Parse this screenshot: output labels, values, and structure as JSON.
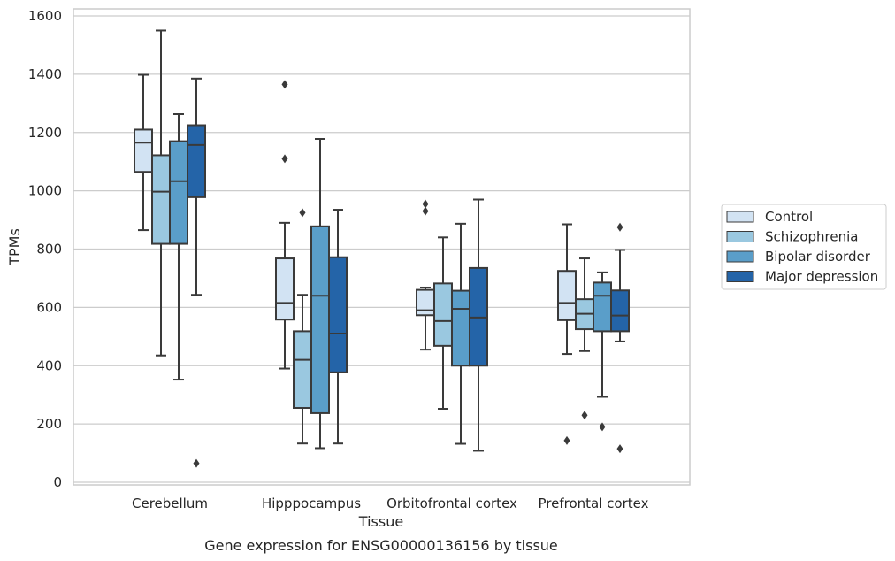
{
  "chart_data": {
    "type": "box",
    "xlabel": "Tissue",
    "ylabel": "TPMs",
    "caption": "Gene expression for ENSG00000136156 by tissue",
    "ylim": [
      0,
      1600
    ],
    "yticks": [
      0,
      200,
      400,
      600,
      800,
      1000,
      1200,
      1400,
      1600
    ],
    "grid": "horizontal",
    "legend_position": "right",
    "categories": [
      "Cerebellum",
      "Hipppocampus",
      "Orbitofrontal cortex",
      "Prefrontal cortex"
    ],
    "series": [
      {
        "name": "Control",
        "color": "#d2e3f3",
        "boxes": [
          {
            "whislo": 865,
            "q1": 1065,
            "med": 1165,
            "q3": 1210,
            "whishi": 1398,
            "fliers": []
          },
          {
            "whislo": 390,
            "q1": 558,
            "med": 615,
            "q3": 768,
            "whishi": 890,
            "fliers": [
              1365,
              1110
            ]
          },
          {
            "whislo": 455,
            "q1": 573,
            "med": 590,
            "q3": 660,
            "whishi": 668,
            "fliers": [
              955,
              930
            ]
          },
          {
            "whislo": 440,
            "q1": 556,
            "med": 615,
            "q3": 725,
            "whishi": 885,
            "fliers": [
              143
            ]
          }
        ]
      },
      {
        "name": "Schizophrenia",
        "color": "#9ac8e0",
        "boxes": [
          {
            "whislo": 435,
            "q1": 818,
            "med": 997,
            "q3": 1122,
            "whishi": 1550,
            "fliers": []
          },
          {
            "whislo": 133,
            "q1": 255,
            "med": 420,
            "q3": 518,
            "whishi": 643,
            "fliers": [
              925
            ]
          },
          {
            "whislo": 252,
            "q1": 468,
            "med": 553,
            "q3": 682,
            "whishi": 840,
            "fliers": []
          },
          {
            "whislo": 450,
            "q1": 525,
            "med": 578,
            "q3": 628,
            "whishi": 768,
            "fliers": [
              230
            ]
          }
        ]
      },
      {
        "name": "Bipolar disorder",
        "color": "#5a9ec9",
        "boxes": [
          {
            "whislo": 352,
            "q1": 818,
            "med": 1033,
            "q3": 1170,
            "whishi": 1263,
            "fliers": []
          },
          {
            "whislo": 117,
            "q1": 237,
            "med": 640,
            "q3": 878,
            "whishi": 1178,
            "fliers": []
          },
          {
            "whislo": 132,
            "q1": 400,
            "med": 595,
            "q3": 657,
            "whishi": 887,
            "fliers": []
          },
          {
            "whislo": 293,
            "q1": 518,
            "med": 640,
            "q3": 685,
            "whishi": 720,
            "fliers": [
              190
            ]
          }
        ]
      },
      {
        "name": "Major depression",
        "color": "#2464a8",
        "boxes": [
          {
            "whislo": 643,
            "q1": 978,
            "med": 1157,
            "q3": 1225,
            "whishi": 1385,
            "fliers": [
              65
            ]
          },
          {
            "whislo": 133,
            "q1": 377,
            "med": 510,
            "q3": 772,
            "whishi": 935,
            "fliers": []
          },
          {
            "whislo": 108,
            "q1": 400,
            "med": 565,
            "q3": 735,
            "whishi": 970,
            "fliers": []
          },
          {
            "whislo": 483,
            "q1": 518,
            "med": 572,
            "q3": 658,
            "whishi": 797,
            "fliers": [
              875,
              115
            ]
          }
        ]
      }
    ]
  }
}
